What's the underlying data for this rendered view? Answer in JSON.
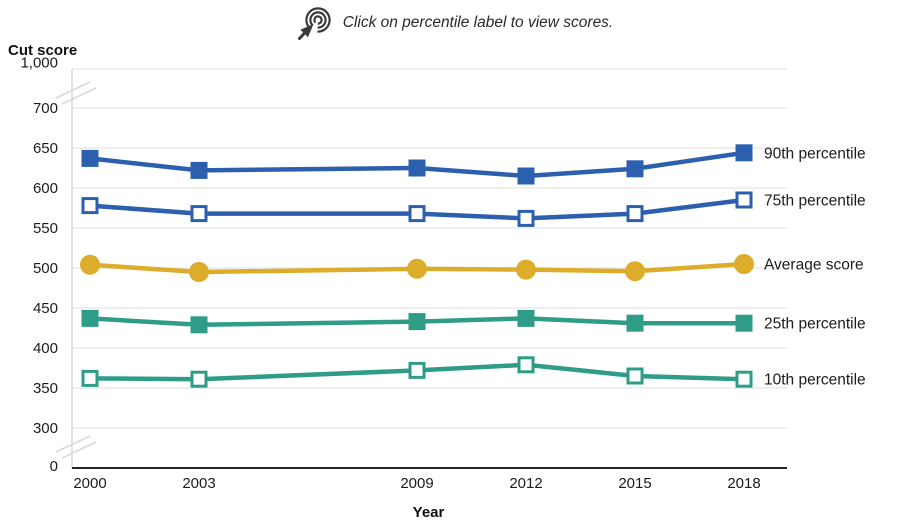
{
  "header": {
    "icon": "click-cursor-icon",
    "instruction": "Click on percentile label to view scores."
  },
  "chart_data": {
    "type": "line",
    "title": "",
    "xlabel": "Year",
    "ylabel": "Cut score",
    "x": [
      2000,
      2003,
      2009,
      2012,
      2015,
      2018
    ],
    "x_tick_labels": [
      "2000",
      "2003",
      "2009",
      "2012",
      "2015",
      "2018"
    ],
    "y_ticks": [
      {
        "value": 1000,
        "label": "1,000"
      },
      {
        "value": 700,
        "label": "700"
      },
      {
        "value": 650,
        "label": "650"
      },
      {
        "value": 600,
        "label": "600"
      },
      {
        "value": 550,
        "label": "550"
      },
      {
        "value": 500,
        "label": "500"
      },
      {
        "value": 450,
        "label": "450"
      },
      {
        "value": 400,
        "label": "400"
      },
      {
        "value": 350,
        "label": "350"
      },
      {
        "value": 300,
        "label": "300"
      },
      {
        "value": 0,
        "label": "0"
      }
    ],
    "y_axis_breaks": [
      [
        0,
        300
      ],
      [
        700,
        1000
      ]
    ],
    "ylim_visible": [
      300,
      700
    ],
    "grid": true,
    "legend_position": "right-of-last-point",
    "series": [
      {
        "name": "90th percentile",
        "color": "#2c5fad",
        "marker": "square-filled",
        "values": [
          637,
          622,
          625,
          615,
          624,
          644
        ]
      },
      {
        "name": "75th percentile",
        "color": "#2c5fad",
        "marker": "square-open",
        "values": [
          578,
          568,
          568,
          562,
          568,
          585
        ]
      },
      {
        "name": "Average score",
        "color": "#ddac2a",
        "marker": "circle-filled",
        "values": [
          504,
          495,
          499,
          498,
          496,
          505
        ]
      },
      {
        "name": "25th percentile",
        "color": "#2f9c87",
        "marker": "square-filled",
        "values": [
          437,
          429,
          433,
          437,
          431,
          431
        ]
      },
      {
        "name": "10th percentile",
        "color": "#2f9c87",
        "marker": "square-open",
        "values": [
          362,
          361,
          372,
          379,
          365,
          361
        ]
      }
    ],
    "colors": {
      "gridline": "#e5e5e5",
      "axis_line": "#222222",
      "y_axis_line": "#cfcfcf",
      "text": "#1c1c1c",
      "icon": "#3a3a3a"
    }
  }
}
